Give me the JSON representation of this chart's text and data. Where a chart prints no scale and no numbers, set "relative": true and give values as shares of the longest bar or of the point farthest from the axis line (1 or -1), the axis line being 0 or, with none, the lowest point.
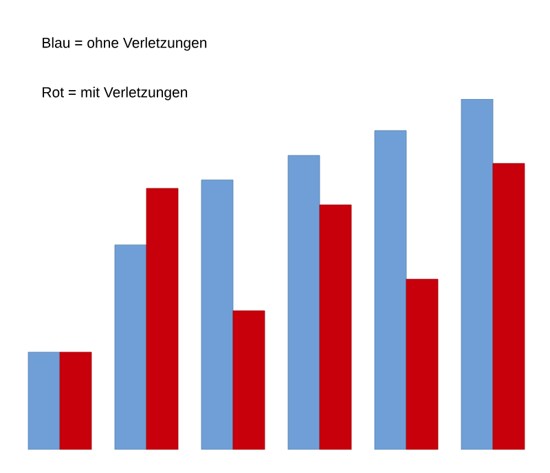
{
  "chart_data": {
    "type": "bar",
    "relative": true,
    "annotations": [
      "Blau = ohne Verletzungen",
      "Rot = mit Verletzungen"
    ],
    "categories": [
      null,
      null,
      null,
      null,
      null,
      null
    ],
    "series": [
      {
        "color": "#6f9fd6",
        "values": [
          0.278,
          0.584,
          0.769,
          0.839,
          0.91,
          1
        ]
      },
      {
        "color": "#c8000b",
        "values": [
          0.278,
          0.745,
          0.396,
          0.698,
          0.486,
          0.816
        ]
      }
    ]
  }
}
